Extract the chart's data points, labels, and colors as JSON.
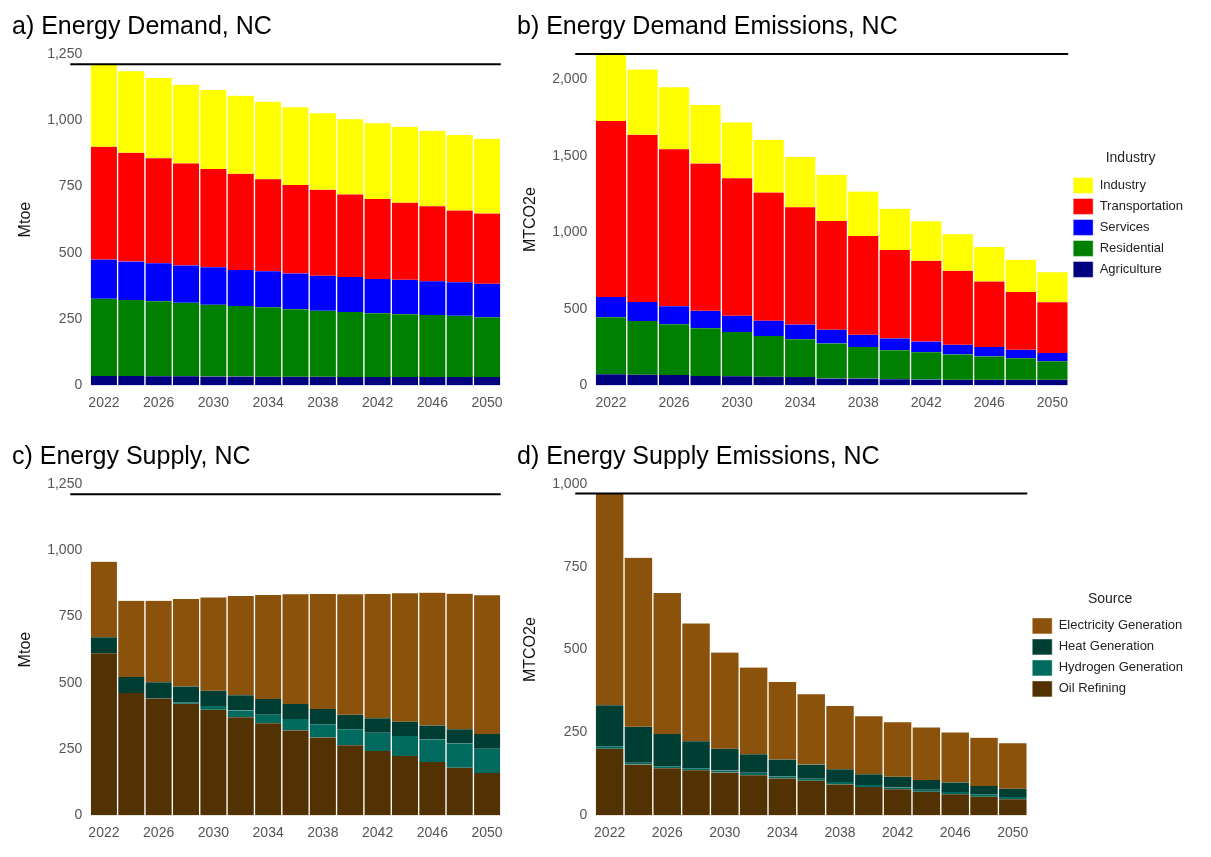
{
  "chart_data": [
    {
      "type": "bar",
      "title": "a) Energy Demand, NC",
      "ylabel": "Mtoe",
      "stacked": true,
      "legend": false,
      "categories": [
        "2022",
        null,
        "2026",
        null,
        "2030",
        null,
        "2034",
        null,
        "2038",
        null,
        "2042",
        null,
        "2046",
        null,
        "2050"
      ],
      "ylim": [
        0,
        1250
      ],
      "yticks": [
        0,
        250,
        500,
        750,
        {
          "value": 1000,
          "label": "1,000"
        },
        {
          "value": 1250,
          "label": "1,250"
        }
      ],
      "ref_lines": [
        {
          "axis": "y",
          "value": 1211,
          "color": "#000000"
        }
      ],
      "series": [
        {
          "color": "#000080",
          "values": [
            35,
            35,
            34,
            34,
            33,
            33,
            32,
            32,
            32,
            31,
            31,
            31,
            31,
            31,
            31
          ]
        },
        {
          "color": "#008000",
          "values": [
            291,
            287,
            283,
            277,
            271,
            266,
            262,
            255,
            249,
            245,
            241,
            237,
            234,
            231,
            225
          ]
        },
        {
          "color": "#0000ff",
          "values": [
            148,
            145,
            143,
            141,
            141,
            136,
            136,
            135,
            132,
            132,
            129,
            130,
            127,
            127,
            127
          ]
        },
        {
          "color": "#ff0000",
          "values": [
            426,
            410,
            397,
            385,
            371,
            363,
            347,
            334,
            325,
            312,
            302,
            291,
            283,
            270,
            265
          ]
        },
        {
          "color": "#ffff00",
          "values": [
            311,
            308,
            302,
            297,
            298,
            294,
            293,
            293,
            288,
            284,
            286,
            286,
            285,
            285,
            282
          ]
        }
      ]
    },
    {
      "type": "bar",
      "title": "b) Energy Demand Emissions, NC",
      "ylabel": "MTCO2e",
      "stacked": true,
      "legend": "right",
      "legend_title": "Industry",
      "categories": [
        "2022",
        null,
        "2026",
        null,
        "2030",
        null,
        "2034",
        null,
        "2038",
        null,
        "2042",
        null,
        "2046",
        null,
        "2050"
      ],
      "ylim": [
        0,
        2165
      ],
      "yticks": [
        0,
        500,
        {
          "value": 1000,
          "label": "1,000"
        },
        {
          "value": 1500,
          "label": "1,500"
        },
        {
          "value": 2000,
          "label": "2,000"
        }
      ],
      "ref_lines": [
        {
          "axis": "y",
          "value": 2165,
          "color": "#000000"
        }
      ],
      "series": [
        {
          "name": "Agriculture",
          "color": "#000080",
          "values": [
            72,
            69,
            67,
            60,
            58,
            56,
            53,
            44,
            44,
            39,
            37,
            35,
            35,
            35,
            35
          ]
        },
        {
          "name": "Residential",
          "color": "#008000",
          "values": [
            372,
            350,
            331,
            313,
            289,
            266,
            248,
            229,
            206,
            190,
            178,
            166,
            153,
            141,
            122
          ]
        },
        {
          "name": "Services",
          "color": "#0000ff",
          "values": [
            132,
            125,
            118,
            113,
            107,
            100,
            95,
            90,
            79,
            77,
            70,
            63,
            62,
            55,
            54
          ]
        },
        {
          "name": "Transportation",
          "color": "#ff0000",
          "values": [
            1151,
            1093,
            1026,
            963,
            898,
            837,
            768,
            711,
            646,
            578,
            528,
            484,
            428,
            378,
            331
          ]
        },
        {
          "name": "Industry",
          "color": "#ffff00",
          "values": [
            438,
            426,
            405,
            382,
            366,
            345,
            327,
            301,
            291,
            269,
            259,
            238,
            225,
            211,
            196
          ]
        }
      ]
    },
    {
      "type": "bar",
      "title": "c) Energy Supply, NC",
      "ylabel": "Mtoe",
      "stacked": true,
      "legend": false,
      "categories": [
        "2022",
        null,
        "2026",
        null,
        "2030",
        null,
        "2034",
        null,
        "2038",
        null,
        "2042",
        null,
        "2046",
        null,
        "2050"
      ],
      "ylim": [
        0,
        1250
      ],
      "yticks": [
        0,
        250,
        500,
        750,
        {
          "value": 1000,
          "label": "1,000"
        },
        {
          "value": 1250,
          "label": "1,250"
        }
      ],
      "ref_lines": [
        {
          "axis": "y",
          "value": 1211,
          "color": "#000000"
        }
      ],
      "series": [
        {
          "color": "#523103",
          "values": [
            611,
            461,
            440,
            421,
            398,
            370,
            347,
            320,
            293,
            264,
            242,
            223,
            201,
            179,
            159
          ]
        },
        {
          "color": "#006a5f",
          "values": [
            0,
            0,
            0,
            5,
            14,
            25,
            32,
            43,
            50,
            60,
            69,
            76,
            85,
            92,
            92
          ]
        },
        {
          "color": "#003d33",
          "values": [
            61,
            61,
            62,
            60,
            58,
            58,
            60,
            57,
            58,
            55,
            55,
            54,
            53,
            53,
            55
          ]
        },
        {
          "color": "#8b520c",
          "values": [
            285,
            287,
            307,
            330,
            352,
            374,
            392,
            414,
            434,
            455,
            469,
            485,
            501,
            512,
            524
          ]
        }
      ]
    },
    {
      "type": "bar",
      "title": "d) Energy Supply Emissions, NC",
      "ylabel": "MTCO2e",
      "stacked": true,
      "legend": "right",
      "legend_title": "Source",
      "categories": [
        "2022",
        null,
        "2026",
        null,
        "2030",
        null,
        "2034",
        null,
        "2038",
        null,
        "2042",
        null,
        "2046",
        null,
        "2050"
      ],
      "ylim": [
        0,
        1000
      ],
      "yticks": [
        0,
        250,
        500,
        750,
        {
          "value": 1000,
          "label": "1,000"
        }
      ],
      "ref_lines": [
        {
          "axis": "y",
          "value": 971,
          "color": "#000000"
        }
      ],
      "series": [
        {
          "name": "Oil Refining",
          "color": "#523103",
          "values": [
            201,
            153,
            142,
            136,
            129,
            121,
            111,
            104,
            93,
            85,
            78,
            71,
            63,
            56,
            48
          ]
        },
        {
          "name": "Hydrogen Generation",
          "color": "#006a5f",
          "values": [
            7,
            5,
            6,
            6,
            6,
            7,
            6,
            6,
            7,
            6,
            6,
            6,
            7,
            7,
            7
          ]
        },
        {
          "name": "Heat Generation",
          "color": "#003d33",
          "values": [
            124,
            109,
            97,
            81,
            66,
            56,
            51,
            43,
            39,
            33,
            32,
            29,
            29,
            25,
            25
          ]
        },
        {
          "name": "Electricity Generation",
          "color": "#8b520c",
          "values": [
            639,
            510,
            426,
            356,
            290,
            262,
            234,
            212,
            191,
            175,
            165,
            159,
            151,
            146,
            137
          ]
        }
      ]
    }
  ]
}
